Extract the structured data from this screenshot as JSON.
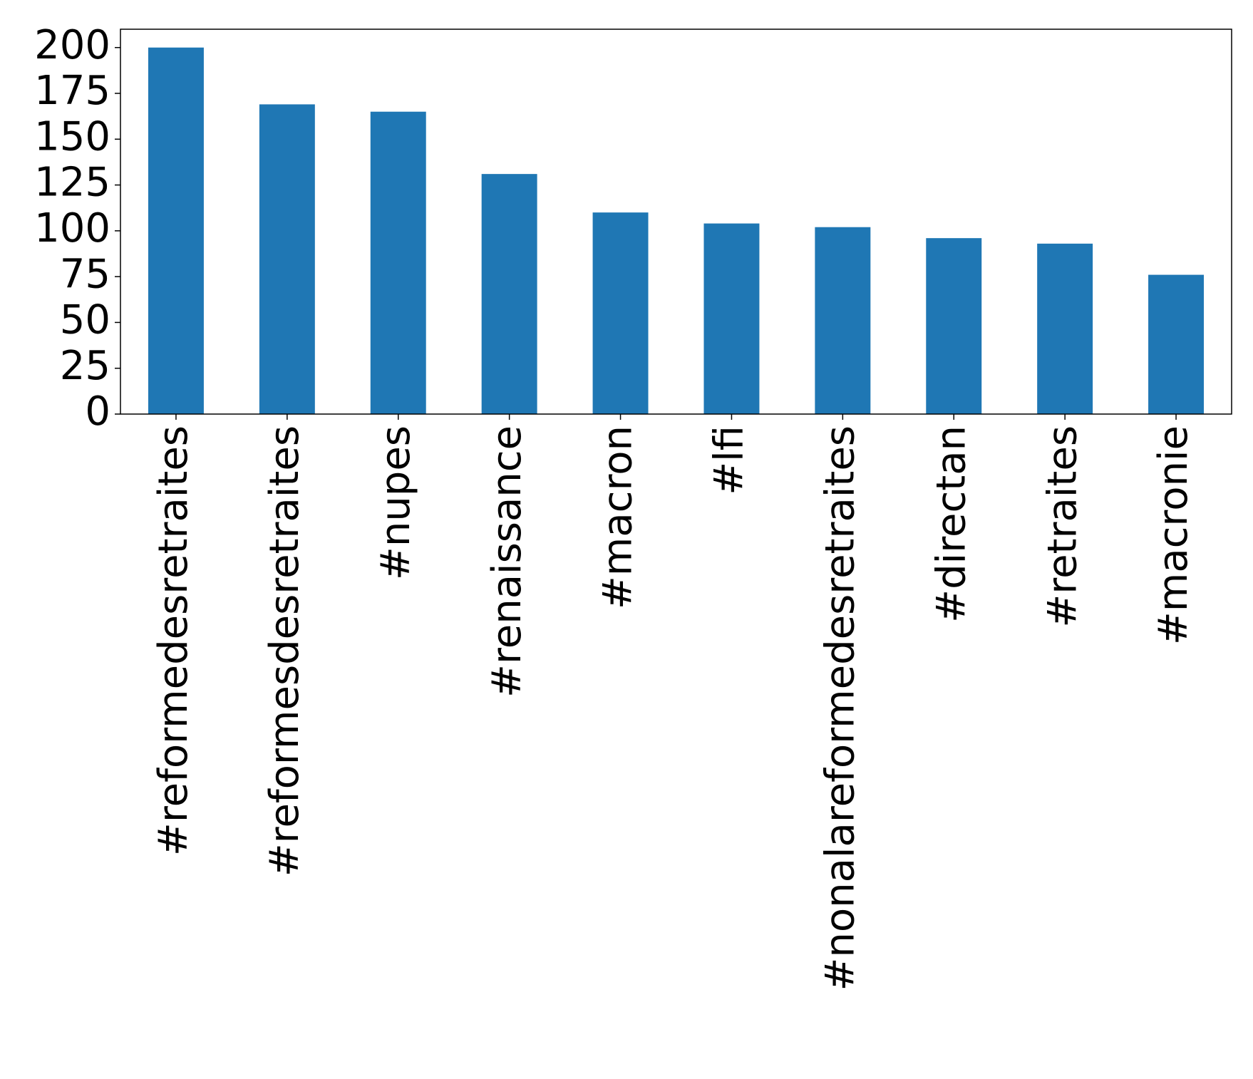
{
  "chart_data": {
    "type": "bar",
    "categories": [
      "#reformedesretraites",
      "#reformesdesretraites",
      "#nupes",
      "#renaissance",
      "#macron",
      "#lfi",
      "#nonalareformedesretraites",
      "#directan",
      "#retraites",
      "#macronie"
    ],
    "values": [
      200,
      169,
      165,
      131,
      110,
      104,
      102,
      96,
      93,
      76
    ],
    "color": "#1f77b4",
    "ylim": [
      0,
      210
    ],
    "yticks": [
      0,
      25,
      50,
      75,
      100,
      125,
      150,
      175,
      200
    ],
    "grid": false
  }
}
